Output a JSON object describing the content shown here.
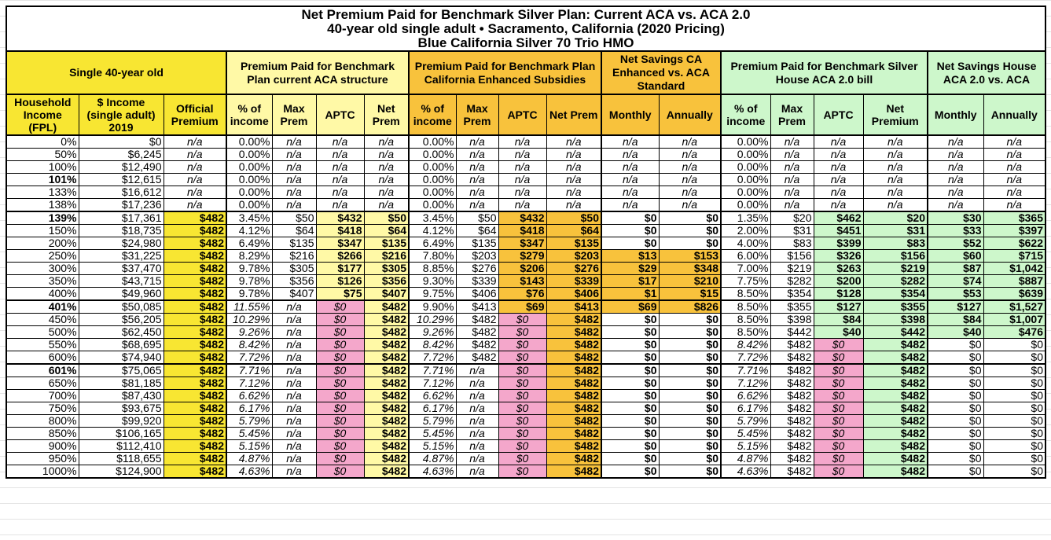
{
  "title": {
    "line1": "Net Premium Paid for Benchmark Silver Plan: Current ACA vs. ACA 2.0",
    "line2": "40-year old single adult • Sacramento, California (2020 Pricing)",
    "line3": "Blue California Silver 70 Trio HMO"
  },
  "groups": [
    {
      "label": "Single 40-year old"
    },
    {
      "label": "Premium Paid for Benchmark Plan current ACA structure"
    },
    {
      "label": "Premium Paid for Benchmark Plan California Enhanced Subsidies"
    },
    {
      "label": "Net Savings CA Enhanced vs. ACA Standard"
    },
    {
      "label": "Premium Paid for Benchmark Silver House ACA 2.0 bill"
    },
    {
      "label": "Net Savings House ACA 2.0 vs. ACA"
    }
  ],
  "columns": [
    "Household Income (FPL)",
    "$ Income (single adult) 2019",
    "Official Premium",
    "% of income",
    "Max Prem",
    "APTC",
    "Net Prem",
    "% of income",
    "Max Prem",
    "APTC",
    "Net Prem",
    "Monthly",
    "Annually",
    "% of income",
    "Max Prem",
    "APTC",
    "Net Premium",
    "Monthly",
    "Annually"
  ],
  "colors": {
    "official": "#f8e632",
    "current_aca": "#fff9a6",
    "california": "#f8c23c",
    "house_aca": "#cdf7cb",
    "zero_aptc": "#f4a7cb"
  },
  "rows": [
    [
      "0%",
      "$0",
      "n/a",
      "0.00%",
      "n/a",
      "n/a",
      "n/a",
      "0.00%",
      "n/a",
      "n/a",
      "n/a",
      "n/a",
      "n/a",
      "0.00%",
      "n/a",
      "n/a",
      "n/a",
      "n/a",
      "n/a"
    ],
    [
      "50%",
      "$6,245",
      "n/a",
      "0.00%",
      "n/a",
      "n/a",
      "n/a",
      "0.00%",
      "n/a",
      "n/a",
      "n/a",
      "n/a",
      "n/a",
      "0.00%",
      "n/a",
      "n/a",
      "n/a",
      "n/a",
      "n/a"
    ],
    [
      "100%",
      "$12,490",
      "n/a",
      "0.00%",
      "n/a",
      "n/a",
      "n/a",
      "0.00%",
      "n/a",
      "n/a",
      "n/a",
      "n/a",
      "n/a",
      "0.00%",
      "n/a",
      "n/a",
      "n/a",
      "n/a",
      "n/a"
    ],
    [
      "101%",
      "$12,615",
      "n/a",
      "0.00%",
      "n/a",
      "n/a",
      "n/a",
      "0.00%",
      "n/a",
      "n/a",
      "n/a",
      "n/a",
      "n/a",
      "0.00%",
      "n/a",
      "n/a",
      "n/a",
      "n/a",
      "n/a"
    ],
    [
      "133%",
      "$16,612",
      "n/a",
      "0.00%",
      "n/a",
      "n/a",
      "n/a",
      "0.00%",
      "n/a",
      "n/a",
      "n/a",
      "n/a",
      "n/a",
      "0.00%",
      "n/a",
      "n/a",
      "n/a",
      "n/a",
      "n/a"
    ],
    [
      "138%",
      "$17,236",
      "n/a",
      "0.00%",
      "n/a",
      "n/a",
      "n/a",
      "0.00%",
      "n/a",
      "n/a",
      "n/a",
      "n/a",
      "n/a",
      "0.00%",
      "n/a",
      "n/a",
      "n/a",
      "n/a",
      "n/a"
    ],
    [
      "139%",
      "$17,361",
      "$482",
      "3.45%",
      "$50",
      "$432",
      "$50",
      "3.45%",
      "$50",
      "$432",
      "$50",
      "$0",
      "$0",
      "1.35%",
      "$20",
      "$462",
      "$20",
      "$30",
      "$365"
    ],
    [
      "150%",
      "$18,735",
      "$482",
      "4.12%",
      "$64",
      "$418",
      "$64",
      "4.12%",
      "$64",
      "$418",
      "$64",
      "$0",
      "$0",
      "2.00%",
      "$31",
      "$451",
      "$31",
      "$33",
      "$397"
    ],
    [
      "200%",
      "$24,980",
      "$482",
      "6.49%",
      "$135",
      "$347",
      "$135",
      "6.49%",
      "$135",
      "$347",
      "$135",
      "$0",
      "$0",
      "4.00%",
      "$83",
      "$399",
      "$83",
      "$52",
      "$622"
    ],
    [
      "250%",
      "$31,225",
      "$482",
      "8.29%",
      "$216",
      "$266",
      "$216",
      "7.80%",
      "$203",
      "$279",
      "$203",
      "$13",
      "$153",
      "6.00%",
      "$156",
      "$326",
      "$156",
      "$60",
      "$715"
    ],
    [
      "300%",
      "$37,470",
      "$482",
      "9.78%",
      "$305",
      "$177",
      "$305",
      "8.85%",
      "$276",
      "$206",
      "$276",
      "$29",
      "$348",
      "7.00%",
      "$219",
      "$263",
      "$219",
      "$87",
      "$1,042"
    ],
    [
      "350%",
      "$43,715",
      "$482",
      "9.78%",
      "$356",
      "$126",
      "$356",
      "9.30%",
      "$339",
      "$143",
      "$339",
      "$17",
      "$210",
      "7.75%",
      "$282",
      "$200",
      "$282",
      "$74",
      "$887"
    ],
    [
      "400%",
      "$49,960",
      "$482",
      "9.78%",
      "$407",
      "$75",
      "$407",
      "9.75%",
      "$406",
      "$76",
      "$406",
      "$1",
      "$15",
      "8.50%",
      "$354",
      "$128",
      "$354",
      "$53",
      "$639"
    ],
    [
      "401%",
      "$50,085",
      "$482",
      "11.55%",
      "n/a",
      "$0",
      "$482",
      "9.90%",
      "$413",
      "$69",
      "$413",
      "$69",
      "$826",
      "8.50%",
      "$355",
      "$127",
      "$355",
      "$127",
      "$1,527"
    ],
    [
      "450%",
      "$56,205",
      "$482",
      "10.29%",
      "n/a",
      "$0",
      "$482",
      "10.29%",
      "$482",
      "$0",
      "$482",
      "$0",
      "$0",
      "8.50%",
      "$398",
      "$84",
      "$398",
      "$84",
      "$1,007"
    ],
    [
      "500%",
      "$62,450",
      "$482",
      "9.26%",
      "n/a",
      "$0",
      "$482",
      "9.26%",
      "$482",
      "$0",
      "$482",
      "$0",
      "$0",
      "8.50%",
      "$442",
      "$40",
      "$442",
      "$40",
      "$476"
    ],
    [
      "550%",
      "$68,695",
      "$482",
      "8.42%",
      "n/a",
      "$0",
      "$482",
      "8.42%",
      "$482",
      "$0",
      "$482",
      "$0",
      "$0",
      "8.42%",
      "$482",
      "$0",
      "$482",
      "$0",
      "$0"
    ],
    [
      "600%",
      "$74,940",
      "$482",
      "7.72%",
      "n/a",
      "$0",
      "$482",
      "7.72%",
      "$482",
      "$0",
      "$482",
      "$0",
      "$0",
      "7.72%",
      "$482",
      "$0",
      "$482",
      "$0",
      "$0"
    ],
    [
      "601%",
      "$75,065",
      "$482",
      "7.71%",
      "n/a",
      "$0",
      "$482",
      "7.71%",
      "n/a",
      "$0",
      "$482",
      "$0",
      "$0",
      "7.71%",
      "$482",
      "$0",
      "$482",
      "$0",
      "$0"
    ],
    [
      "650%",
      "$81,185",
      "$482",
      "7.12%",
      "n/a",
      "$0",
      "$482",
      "7.12%",
      "n/a",
      "$0",
      "$482",
      "$0",
      "$0",
      "7.12%",
      "$482",
      "$0",
      "$482",
      "$0",
      "$0"
    ],
    [
      "700%",
      "$87,430",
      "$482",
      "6.62%",
      "n/a",
      "$0",
      "$482",
      "6.62%",
      "n/a",
      "$0",
      "$482",
      "$0",
      "$0",
      "6.62%",
      "$482",
      "$0",
      "$482",
      "$0",
      "$0"
    ],
    [
      "750%",
      "$93,675",
      "$482",
      "6.17%",
      "n/a",
      "$0",
      "$482",
      "6.17%",
      "n/a",
      "$0",
      "$482",
      "$0",
      "$0",
      "6.17%",
      "$482",
      "$0",
      "$482",
      "$0",
      "$0"
    ],
    [
      "800%",
      "$99,920",
      "$482",
      "5.79%",
      "n/a",
      "$0",
      "$482",
      "5.79%",
      "n/a",
      "$0",
      "$482",
      "$0",
      "$0",
      "5.79%",
      "$482",
      "$0",
      "$482",
      "$0",
      "$0"
    ],
    [
      "850%",
      "$106,165",
      "$482",
      "5.45%",
      "n/a",
      "$0",
      "$482",
      "5.45%",
      "n/a",
      "$0",
      "$482",
      "$0",
      "$0",
      "5.45%",
      "$482",
      "$0",
      "$482",
      "$0",
      "$0"
    ],
    [
      "900%",
      "$112,410",
      "$482",
      "5.15%",
      "n/a",
      "$0",
      "$482",
      "5.15%",
      "n/a",
      "$0",
      "$482",
      "$0",
      "$0",
      "5.15%",
      "$482",
      "$0",
      "$482",
      "$0",
      "$0"
    ],
    [
      "950%",
      "$118,655",
      "$482",
      "4.87%",
      "n/a",
      "$0",
      "$482",
      "4.87%",
      "n/a",
      "$0",
      "$482",
      "$0",
      "$0",
      "4.87%",
      "$482",
      "$0",
      "$482",
      "$0",
      "$0"
    ],
    [
      "1000%",
      "$124,900",
      "$482",
      "4.63%",
      "n/a",
      "$0",
      "$482",
      "4.63%",
      "n/a",
      "$0",
      "$482",
      "$0",
      "$0",
      "4.63%",
      "$482",
      "$0",
      "$482",
      "$0",
      "$0"
    ]
  ]
}
